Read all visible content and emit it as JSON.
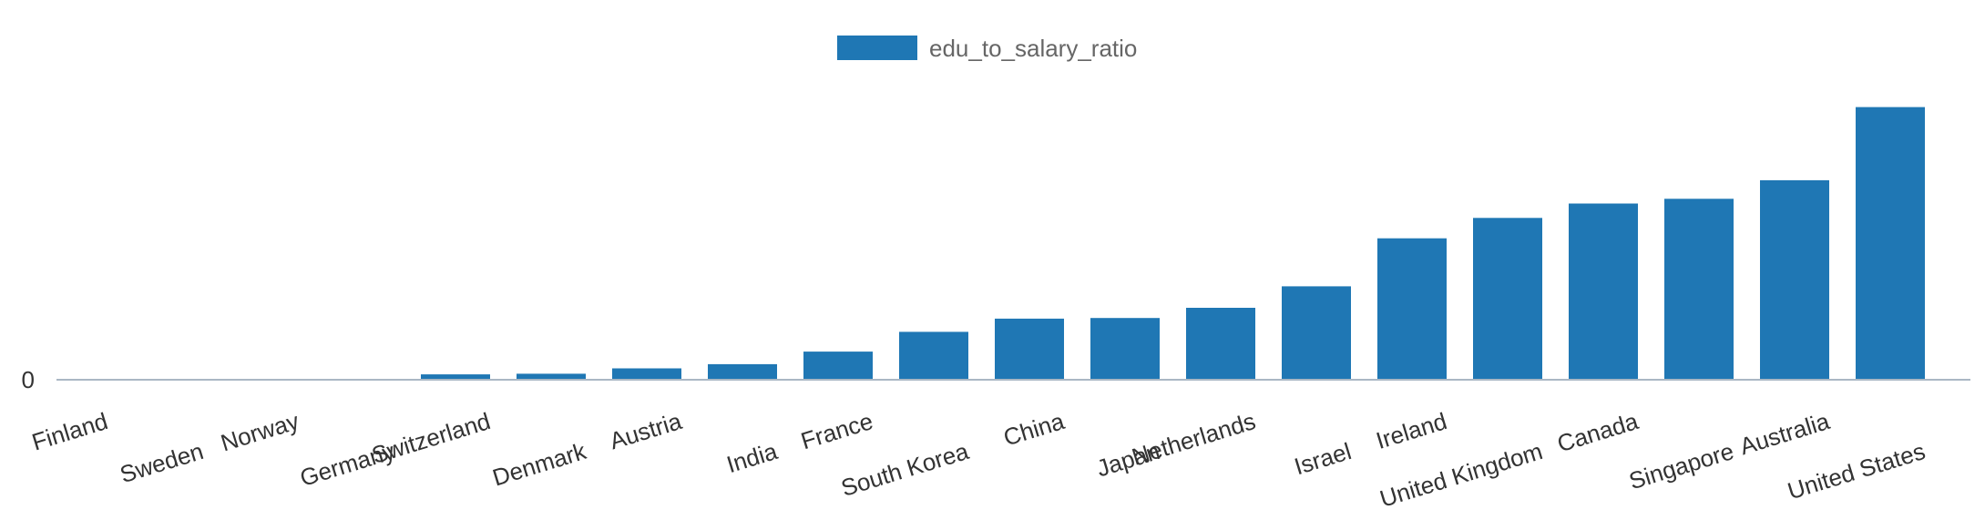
{
  "chart_data": {
    "type": "bar",
    "categories": [
      "Finland",
      "Sweden",
      "Norway",
      "Germany",
      "Switzerland",
      "Denmark",
      "Austria",
      "India",
      "France",
      "South Korea",
      "China",
      "Japan",
      "Netherlands",
      "Israel",
      "Ireland",
      "United Kingdom",
      "Canada",
      "Singapore",
      "Australia",
      "United States"
    ],
    "series": [
      {
        "name": "edu_to_salary_ratio",
        "values": [
          0,
          0,
          0,
          0.05,
          0.9,
          1.0,
          1.9,
          2.6,
          4.7,
          8.0,
          10.2,
          10.3,
          12.0,
          15.6,
          23.6,
          27.0,
          29.4,
          30.2,
          33.3,
          45.5
        ]
      }
    ],
    "y_ticks": [
      "0"
    ],
    "ylim": [
      0,
      50
    ],
    "grid": false,
    "legend_position": "top-center",
    "colors": {
      "bar": "#1f77b4",
      "axis": "#aab7c4"
    }
  }
}
